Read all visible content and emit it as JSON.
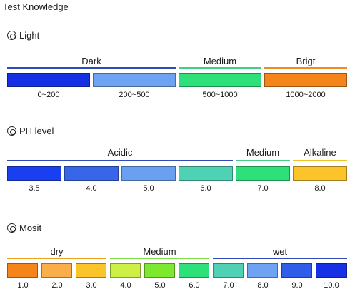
{
  "title": "Test  Knowledge",
  "sections": {
    "light": {
      "title": "Light",
      "groups": [
        {
          "label": "Dark",
          "line_color": "#2e4bb8"
        },
        {
          "label": "Medium",
          "line_color": "#3fd084"
        },
        {
          "label": "Brigt",
          "line_color": "#f28a1e"
        }
      ],
      "swatches": [
        {
          "value": "0~200",
          "color": "#1630e6"
        },
        {
          "value": "200~500",
          "color": "#6ea2f2"
        },
        {
          "value": "500~1000",
          "color": "#2ee07a"
        },
        {
          "value": "1000~2000",
          "color": "#f5841a"
        }
      ]
    },
    "ph": {
      "title": "PH level",
      "groups": [
        {
          "label": "Acidic",
          "line_color": "#2e4bb8"
        },
        {
          "label": "Medium",
          "line_color": "#3fd084"
        },
        {
          "label": "Alkaline",
          "line_color": "#f2c21e"
        }
      ],
      "swatches": [
        {
          "value": "3.5",
          "color": "#1a3ff0"
        },
        {
          "value": "4.0",
          "color": "#3766e8"
        },
        {
          "value": "5.0",
          "color": "#6aa0f2"
        },
        {
          "value": "6.0",
          "color": "#4fd1b4"
        },
        {
          "value": "7.0",
          "color": "#2ee07a"
        },
        {
          "value": "8.0",
          "color": "#fbc42a"
        }
      ]
    },
    "moist": {
      "title": "Mosit",
      "groups": [
        {
          "label": "dry",
          "line_color": "#f2a01e"
        },
        {
          "label": "Medium",
          "line_color": "#7ee04a"
        },
        {
          "label": "wet",
          "line_color": "#2e4bb8"
        }
      ],
      "swatches": [
        {
          "value": "1.0",
          "color": "#f5841a"
        },
        {
          "value": "2.0",
          "color": "#f9ae4a"
        },
        {
          "value": "3.0",
          "color": "#fbc42a"
        },
        {
          "value": "4.0",
          "color": "#cdf046"
        },
        {
          "value": "5.0",
          "color": "#7ee82e"
        },
        {
          "value": "6.0",
          "color": "#2ee07a"
        },
        {
          "value": "7.0",
          "color": "#4fd1b4"
        },
        {
          "value": "8.0",
          "color": "#6ea2f2"
        },
        {
          "value": "9.0",
          "color": "#2f5ce8"
        },
        {
          "value": "10.0",
          "color": "#1630e6"
        }
      ]
    }
  }
}
